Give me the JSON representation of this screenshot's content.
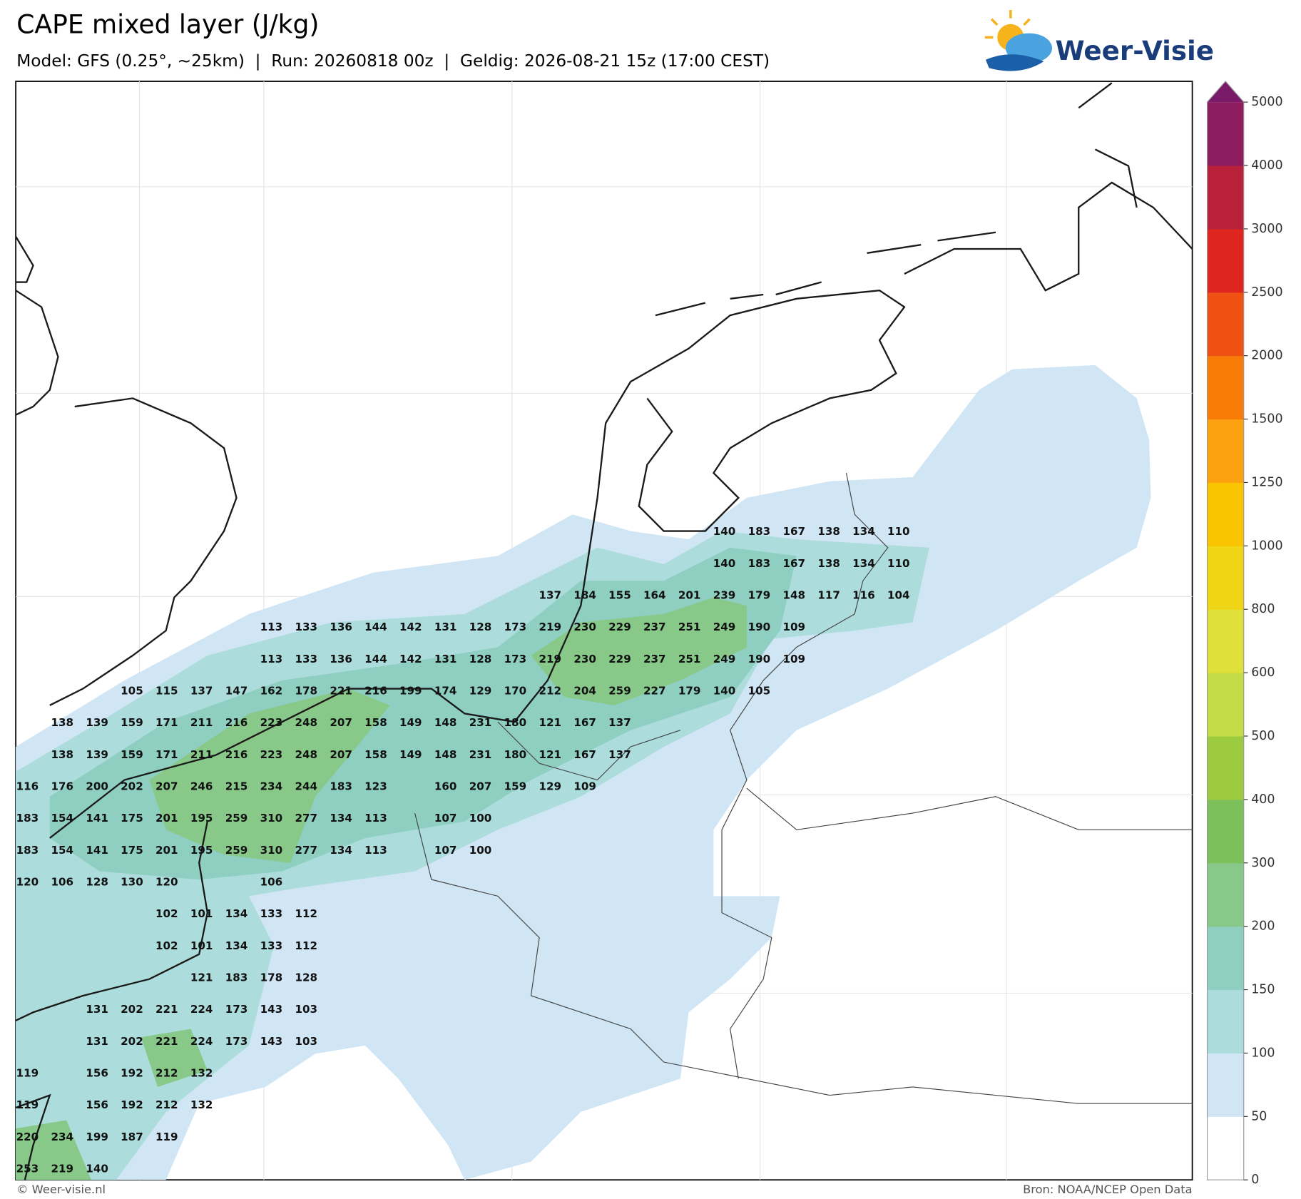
{
  "header": {
    "title": "CAPE mixed layer (J/kg)",
    "subtitle": "Model: GFS (0.25°, ~25km)  |  Run: 20260818 00z  |  Geldig: 2026-08-21 15z (17:00 CEST)",
    "logo": "Weer-Visie"
  },
  "map": {
    "value_labels": {
      "rows": [
        [
          null,
          null,
          null,
          null,
          null,
          null,
          null,
          null,
          null,
          null,
          null,
          null,
          null,
          null,
          null,
          null,
          null,
          null,
          null,
          null,
          140,
          183,
          167,
          138,
          134,
          110
        ],
        [
          null,
          null,
          null,
          null,
          null,
          null,
          null,
          null,
          null,
          null,
          null,
          null,
          null,
          null,
          null,
          null,
          null,
          null,
          null,
          null,
          140,
          183,
          167,
          138,
          134,
          110
        ],
        [
          null,
          null,
          null,
          null,
          null,
          null,
          null,
          null,
          null,
          null,
          null,
          null,
          null,
          null,
          null,
          137,
          184,
          155,
          164,
          201,
          239,
          179,
          148,
          117,
          116,
          104
        ],
        [
          null,
          null,
          null,
          null,
          null,
          null,
          null,
          113,
          133,
          136,
          144,
          142,
          131,
          128,
          173,
          219,
          230,
          229,
          237,
          251,
          249,
          190,
          109
        ],
        [
          null,
          null,
          null,
          null,
          null,
          null,
          null,
          113,
          133,
          136,
          144,
          142,
          131,
          128,
          173,
          219,
          230,
          229,
          237,
          251,
          249,
          190,
          109
        ],
        [
          null,
          null,
          null,
          105,
          115,
          137,
          147,
          162,
          178,
          221,
          216,
          199,
          174,
          129,
          170,
          212,
          204,
          259,
          227,
          179,
          140,
          105
        ],
        [
          null,
          138,
          139,
          159,
          171,
          211,
          216,
          223,
          248,
          207,
          158,
          149,
          148,
          231,
          180,
          121,
          167,
          137
        ],
        [
          null,
          138,
          139,
          159,
          171,
          211,
          216,
          223,
          248,
          207,
          158,
          149,
          148,
          231,
          180,
          121,
          167,
          137
        ],
        [
          116,
          176,
          200,
          202,
          207,
          246,
          215,
          234,
          244,
          183,
          123,
          null,
          160,
          207,
          159,
          129,
          109
        ],
        [
          183,
          154,
          141,
          175,
          201,
          195,
          259,
          310,
          277,
          134,
          113,
          null,
          107,
          100
        ],
        [
          183,
          154,
          141,
          175,
          201,
          195,
          259,
          310,
          277,
          134,
          113,
          null,
          107,
          100
        ],
        [
          120,
          106,
          128,
          130,
          120,
          null,
          null,
          106
        ],
        [
          null,
          null,
          null,
          null,
          102,
          101,
          134,
          133,
          112
        ],
        [
          null,
          null,
          null,
          null,
          102,
          101,
          134,
          133,
          112
        ],
        [
          null,
          null,
          null,
          null,
          null,
          121,
          183,
          178,
          128
        ],
        [
          null,
          null,
          131,
          202,
          221,
          224,
          173,
          143,
          103
        ],
        [
          null,
          null,
          131,
          202,
          221,
          224,
          173,
          143,
          103
        ],
        [
          119,
          null,
          156,
          192,
          212,
          132
        ],
        [
          119,
          null,
          156,
          192,
          212,
          132
        ],
        [
          220,
          234,
          199,
          187,
          119
        ],
        [
          253,
          219,
          140
        ]
      ]
    }
  },
  "colorbar": {
    "levels": [
      0,
      50,
      100,
      150,
      200,
      300,
      400,
      500,
      600,
      800,
      1000,
      1250,
      1500,
      2000,
      2500,
      3000,
      4000,
      5000
    ],
    "colors": [
      "#ffffff",
      "#d0e6f5",
      "#acdcdc",
      "#8ecfc1",
      "#88c98a",
      "#7bc05a",
      "#9ccb3f",
      "#c3dc48",
      "#dfe03a",
      "#f0d517",
      "#fbc400",
      "#fca10f",
      "#f97c09",
      "#ee5112",
      "#df2520",
      "#b92039",
      "#8d1c5f"
    ],
    "extend_color": "#7a1b6a"
  },
  "footer": {
    "left": "© Weer-visie.nl",
    "right": "Bron: NOAA/NCEP Open Data"
  }
}
